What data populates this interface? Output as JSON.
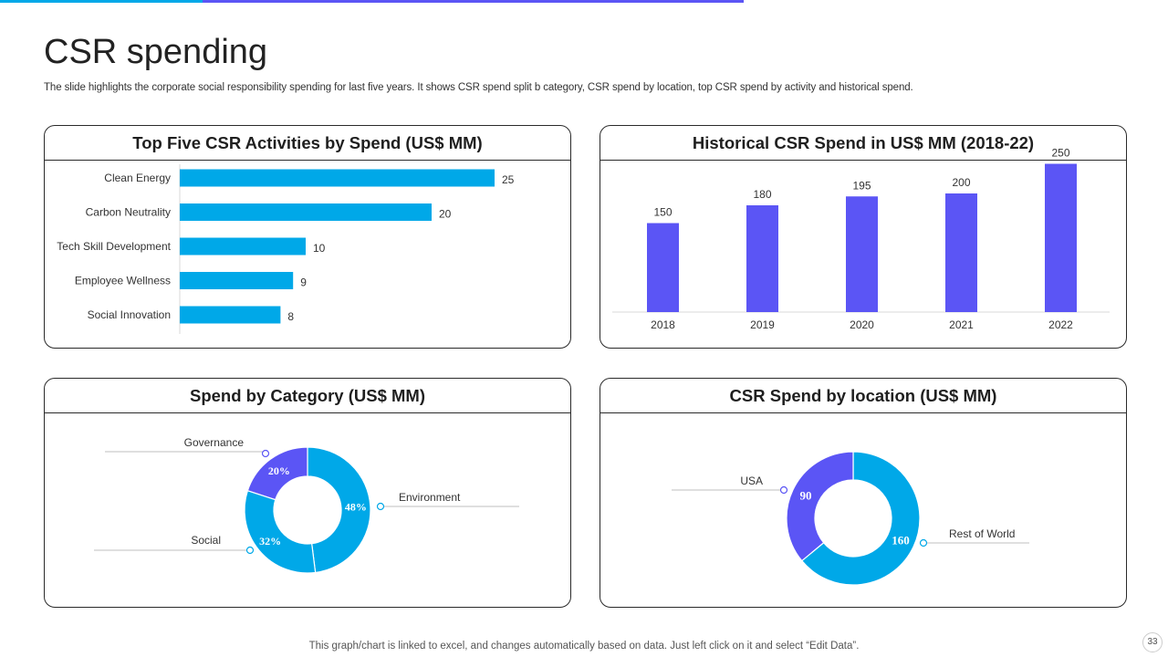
{
  "page": {
    "title": "CSR spending",
    "subtitle": "The slide highlights the corporate social responsibility spending for last five years. It shows CSR spend split b category, CSR spend by location, top CSR spend by activity  and historical spend.",
    "footer_note": "This graph/chart is linked to excel,  and changes automatically based on data. Just left click on it and select “Edit Data”.",
    "page_number": "33"
  },
  "colors": {
    "blue": "#00a8e8",
    "purple": "#5b55f5",
    "accent_bar_left": "#00a8e8",
    "accent_bar_right": "#5b55f5"
  },
  "chart_data": [
    {
      "type": "bar",
      "orientation": "horizontal",
      "title": "Top Five CSR Activities by Spend (US$ MM)",
      "categories": [
        "Clean Energy",
        "Carbon Neutrality",
        "Tech Skill Development",
        "Employee Wellness",
        "Social Innovation"
      ],
      "values": [
        25,
        20,
        10,
        9,
        8
      ],
      "xlim": [
        0,
        30
      ],
      "color": "#00a8e8"
    },
    {
      "type": "bar",
      "title": "Historical CSR Spend in US$ MM (2018-22)",
      "categories": [
        "2018",
        "2019",
        "2020",
        "2021",
        "2022"
      ],
      "values": [
        150,
        180,
        195,
        200,
        250
      ],
      "ylim": [
        0,
        280
      ],
      "color": "#5b55f5"
    },
    {
      "type": "pie",
      "style": "donut",
      "title": "Spend by Category (US$ MM)",
      "slices": [
        {
          "label": "Environment",
          "value": 48,
          "display": "48%",
          "color": "#00a8e8"
        },
        {
          "label": "Social",
          "value": 32,
          "display": "32%",
          "color": "#00a8e8"
        },
        {
          "label": "Governance",
          "value": 20,
          "display": "20%",
          "color": "#5b55f5"
        }
      ]
    },
    {
      "type": "pie",
      "style": "donut",
      "title": "CSR Spend by location (US$ MM)",
      "slices": [
        {
          "label": "Rest of World",
          "value": 160,
          "display": "160",
          "color": "#00a8e8"
        },
        {
          "label": "USA",
          "value": 90,
          "display": "90",
          "color": "#5b55f5"
        }
      ]
    }
  ]
}
